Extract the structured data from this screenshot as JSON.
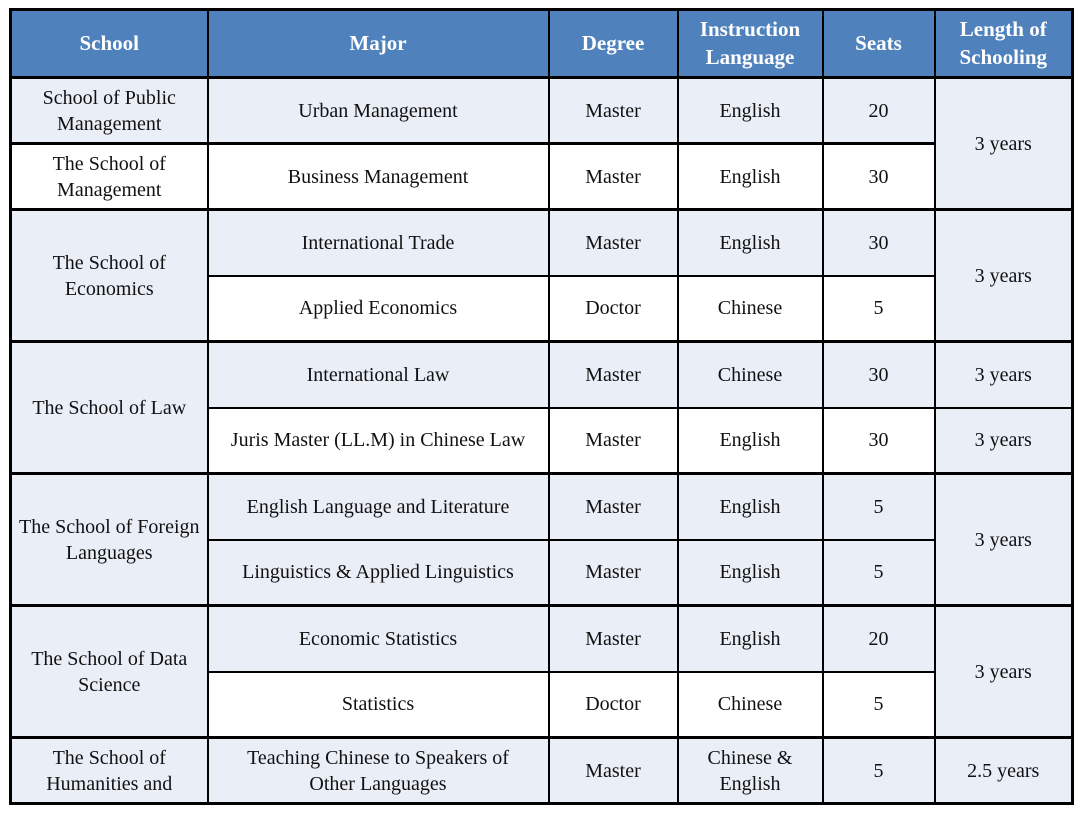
{
  "table": {
    "header": {
      "school": "School",
      "major": "Major",
      "degree": "Degree",
      "instruction_language": "Instruction Language",
      "seats": "Seats",
      "length_of_schooling": "Length of Schooling"
    },
    "rows": [
      {
        "school": "School of Public Management",
        "major": "Urban Management",
        "degree": "Master",
        "language": "English",
        "seats": "20",
        "length": "3 years"
      },
      {
        "school": "The School of Management",
        "major": "Business Management",
        "degree": "Master",
        "language": "English",
        "seats": "30"
      },
      {
        "school": "The School of Economics",
        "major": "International Trade",
        "degree": "Master",
        "language": "English",
        "seats": "30",
        "length": "3 years"
      },
      {
        "major": "Applied Economics",
        "degree": "Doctor",
        "language": "Chinese",
        "seats": "5"
      },
      {
        "school": "The School of Law",
        "major": "International Law",
        "degree": "Master",
        "language": "Chinese",
        "seats": "30",
        "length": "3 years"
      },
      {
        "major": "Juris Master (LL.M) in Chinese Law",
        "degree": "Master",
        "language": "English",
        "seats": "30",
        "length": "3 years"
      },
      {
        "school": "The School of Foreign Languages",
        "major": "English Language and Literature",
        "degree": "Master",
        "language": "English",
        "seats": "5",
        "length": "3 years"
      },
      {
        "major": "Linguistics & Applied Linguistics",
        "degree": "Master",
        "language": "English",
        "seats": "5"
      },
      {
        "school": "The School of Data Science",
        "major": "Economic Statistics",
        "degree": "Master",
        "language": "English",
        "seats": "20",
        "length": "3 years"
      },
      {
        "major": "Statistics",
        "degree": "Doctor",
        "language": "Chinese",
        "seats": "5"
      },
      {
        "school": "The School of Humanities and",
        "major": "Teaching Chinese to Speakers of Other Languages",
        "degree": "Master",
        "language": "Chinese & English",
        "seats": "5",
        "length": "2.5 years"
      }
    ],
    "colors": {
      "header_bg": "#4F81BD",
      "header_text": "#FFFFFF",
      "row_shade": "#E9EEF7",
      "border": "#000000"
    }
  }
}
